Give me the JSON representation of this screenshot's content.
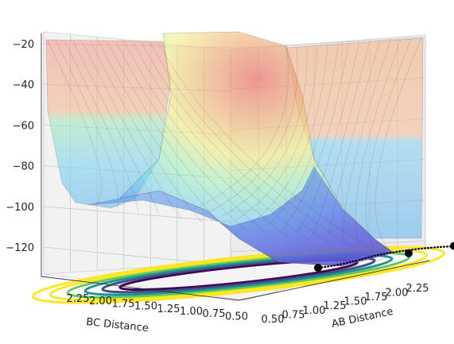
{
  "chart_data": {
    "type": "surface",
    "title": "",
    "xlabel": "AB Distance",
    "ylabel": "BC Distance",
    "zlabel": "",
    "x_ticks": [
      "0.50",
      "0.75",
      "1.00",
      "1.25",
      "1.50",
      "1.75",
      "2.00",
      "2.25"
    ],
    "y_ticks": [
      "2.25",
      "2.00",
      "1.75",
      "1.50",
      "1.25",
      "1.00",
      "0.75",
      "0.50"
    ],
    "z_ticks": [
      "−20",
      "−40",
      "−60",
      "−80",
      "−100",
      "−120"
    ],
    "z_values": [
      -20,
      -40,
      -60,
      -80,
      -100,
      -120
    ],
    "xlim": [
      0.5,
      2.3
    ],
    "ylim": [
      0.5,
      2.3
    ],
    "zlim": [
      -130,
      -18
    ],
    "colormap_surface": "jet",
    "colormap_contour": "viridis",
    "surface_alpha": 0.45,
    "grid": true,
    "trajectory": {
      "color": "#000000",
      "markers": [
        {
          "x": 2.3,
          "y": 0.74
        },
        {
          "x": 2.0,
          "y": 0.74
        },
        {
          "x": 1.4,
          "y": 0.74
        }
      ]
    }
  }
}
